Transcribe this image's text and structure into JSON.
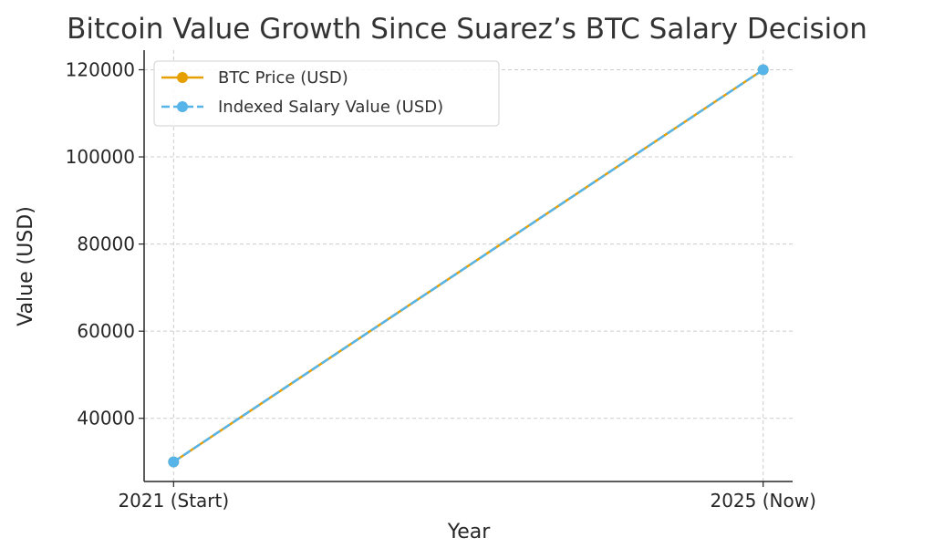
{
  "chart_data": {
    "type": "line",
    "title": "Bitcoin Value Growth Since Suarez’s BTC Salary Decision",
    "xlabel": "Year",
    "ylabel": "Value (USD)",
    "categories": [
      "2021 (Start)",
      "2025 (Now)"
    ],
    "series": [
      {
        "name": "BTC Price (USD)",
        "values": [
          30000,
          120000
        ],
        "color": "#E69F00",
        "style": "solid",
        "marker": "circle"
      },
      {
        "name": "Indexed Salary Value (USD)",
        "values": [
          30000,
          120000
        ],
        "color": "#56B4E9",
        "style": "dashed",
        "marker": "circle"
      }
    ],
    "yticks": [
      40000,
      60000,
      80000,
      100000,
      120000
    ],
    "ylim": [
      25500,
      124500
    ],
    "grid": true,
    "legend": "top-left"
  }
}
